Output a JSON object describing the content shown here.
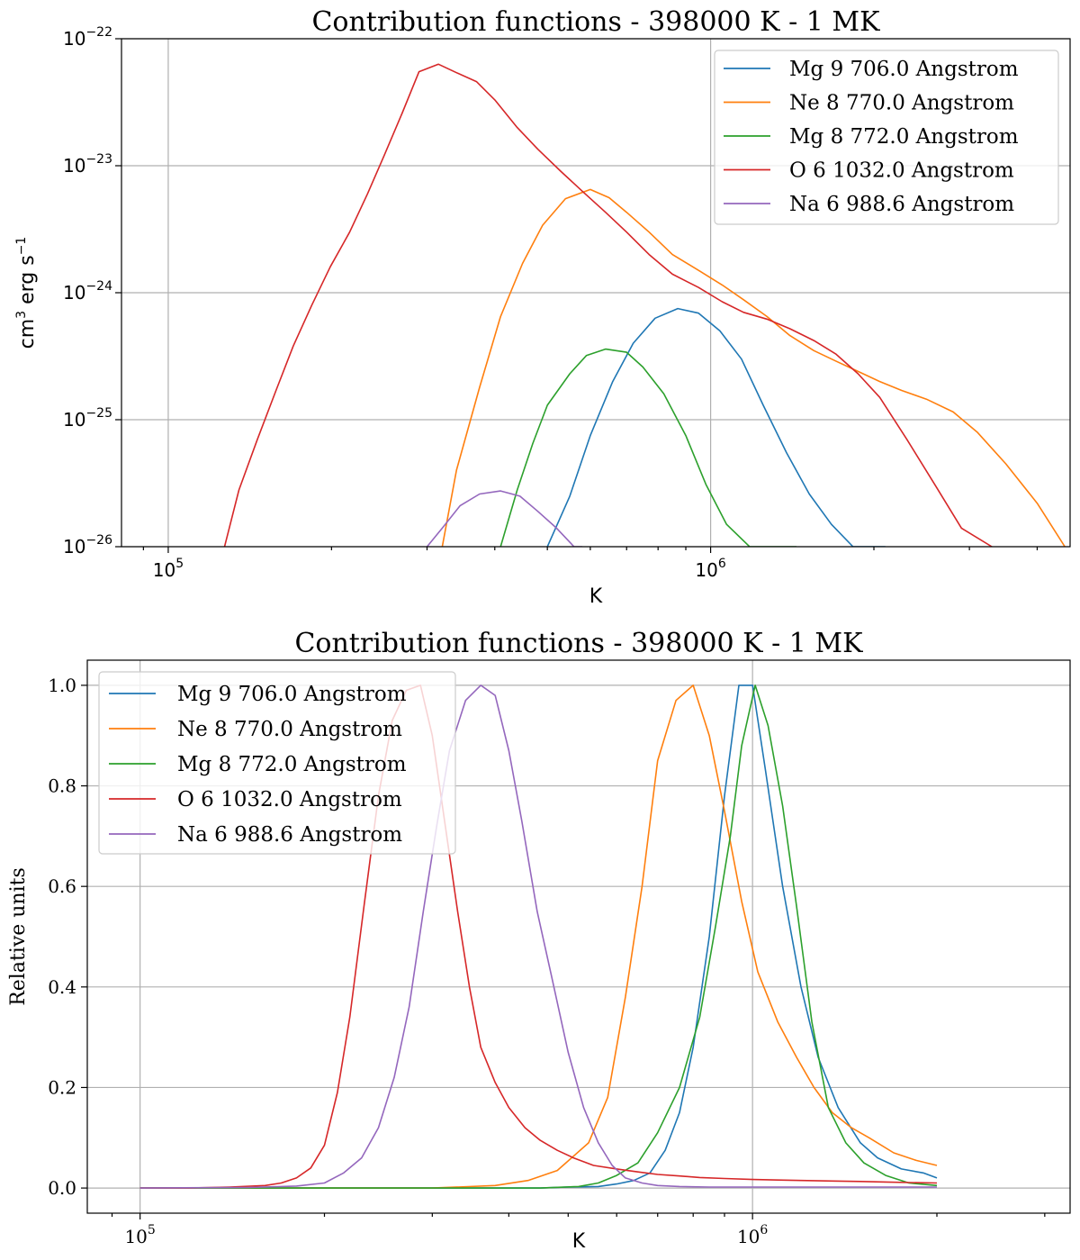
{
  "chart_data": [
    {
      "type": "line",
      "title": "Contribution functions - 398000 K - 1 MK",
      "xlabel": "K",
      "ylabel": "cm3 erg s-1",
      "xscale": "log",
      "yscale": "log",
      "xlim": [
        82000,
        4600000
      ],
      "ylim": [
        1e-26,
        1e-22
      ],
      "grid": true,
      "legend_position": "top-right",
      "x_tick_labels": [
        {
          "base": "10",
          "exp": "5",
          "value": 100000
        },
        {
          "base": "10",
          "exp": "6",
          "value": 1000000
        }
      ],
      "y_tick_labels": [
        {
          "base": "10",
          "exp": "−26",
          "value": 1e-26
        },
        {
          "base": "10",
          "exp": "−25",
          "value": 1e-25
        },
        {
          "base": "10",
          "exp": "−24",
          "value": 1e-24
        },
        {
          "base": "10",
          "exp": "−23",
          "value": 1e-23
        },
        {
          "base": "10",
          "exp": "−22",
          "value": 1e-22
        }
      ],
      "series": [
        {
          "name": "Mg 9 706.0 Angstrom",
          "color": "#1f77b4",
          "x": [
            500000,
            550000,
            600000,
            660000,
            720000,
            790000,
            870000,
            950000,
            1040000,
            1140000,
            1250000,
            1380000,
            1520000,
            1670000,
            1830000,
            2010000,
            2100000
          ],
          "y": [
            1e-26,
            2.5e-26,
            7.5e-26,
            2e-25,
            4e-25,
            6.3e-25,
            7.5e-25,
            6.9e-25,
            5e-25,
            3e-25,
            1.3e-25,
            5.5e-26,
            2.6e-26,
            1.5e-26,
            1e-26,
            1e-26,
            1e-26
          ]
        },
        {
          "name": "Ne 8 770.0 Angstrom",
          "color": "#ff7f0e",
          "x": [
            320000,
            340000,
            375000,
            410000,
            450000,
            490000,
            540000,
            600000,
            650000,
            700000,
            770000,
            850000,
            950000,
            1050000,
            1150000,
            1270000,
            1400000,
            1550000,
            1700000,
            1870000,
            2050000,
            2250000,
            2500000,
            2800000,
            3100000,
            3500000,
            4000000,
            4500000
          ],
          "y": [
            1e-26,
            4e-26,
            1.8e-25,
            6.5e-25,
            1.7e-24,
            3.4e-24,
            5.5e-24,
            6.5e-24,
            5.6e-24,
            4.3e-24,
            3e-24,
            2e-24,
            1.5e-24,
            1.15e-24,
            8.8e-25,
            6.5e-25,
            4.6e-25,
            3.5e-25,
            2.9e-25,
            2.4e-25,
            2e-25,
            1.7e-25,
            1.45e-25,
            1.15e-25,
            8e-26,
            4.5e-26,
            2.2e-26,
            1e-26
          ]
        },
        {
          "name": "Mg 8 772.0 Angstrom",
          "color": "#2ca02c",
          "x": [
            410000,
            440000,
            470000,
            500000,
            550000,
            590000,
            640000,
            700000,
            750000,
            820000,
            900000,
            980000,
            1070000,
            1180000,
            1300000,
            1400000,
            1440000
          ],
          "y": [
            1e-26,
            2.8e-26,
            6.5e-26,
            1.3e-25,
            2.3e-25,
            3.2e-25,
            3.6e-25,
            3.4e-25,
            2.6e-25,
            1.6e-25,
            7.5e-26,
            3.1e-26,
            1.5e-26,
            1e-26,
            1e-26,
            1e-26,
            1e-26
          ],
          "y_override": null
        },
        {
          "name": "O 6 1032.0 Angstrom",
          "color": "#d62728",
          "x": [
            127000,
            135000,
            146000,
            158000,
            170000,
            184000,
            199000,
            216000,
            233000,
            250000,
            270000,
            290000,
            315000,
            340000,
            370000,
            400000,
            440000,
            480000,
            530000,
            580000,
            640000,
            700000,
            770000,
            850000,
            950000,
            1050000,
            1150000,
            1270000,
            1400000,
            1550000,
            1700000,
            1870000,
            2050000,
            2300000,
            2600000,
            2900000,
            3300000
          ],
          "y": [
            1e-26,
            2.8e-26,
            7e-26,
            1.7e-25,
            3.8e-25,
            8e-25,
            1.6e-24,
            3e-24,
            6e-24,
            1.2e-23,
            2.6e-23,
            5.5e-23,
            6.3e-23,
            5.4e-23,
            4.6e-23,
            3.3e-23,
            2e-23,
            1.35e-23,
            9e-24,
            6.3e-24,
            4.3e-24,
            3e-24,
            2e-24,
            1.4e-24,
            1.1e-24,
            8.5e-25,
            7e-25,
            6.2e-25,
            5.2e-25,
            4.2e-25,
            3.3e-25,
            2.3e-25,
            1.5e-25,
            7e-26,
            3e-26,
            1.4e-26,
            1e-26
          ]
        },
        {
          "name": "Na 6 988.6 Angstrom",
          "color": "#9467bd",
          "x": [
            300000,
            320000,
            345000,
            375000,
            410000,
            445000,
            480000,
            520000,
            560000,
            580000
          ],
          "y": [
            1e-26,
            1.4e-26,
            2.1e-26,
            2.6e-26,
            2.75e-26,
            2.5e-26,
            1.9e-26,
            1.4e-26,
            1e-26,
            1e-26
          ]
        }
      ]
    },
    {
      "type": "line",
      "title": "Contribution functions - 398000 K - 1 MK",
      "xlabel": "K",
      "ylabel": "Relative units",
      "xscale": "log",
      "yscale": "linear",
      "xlim": [
        82000,
        3300000
      ],
      "ylim": [
        -0.05,
        1.05
      ],
      "grid": true,
      "legend_position": "top-left",
      "x_tick_labels": [
        {
          "base": "10",
          "exp": "5",
          "value": 100000
        },
        {
          "base": "10",
          "exp": "6",
          "value": 1000000
        }
      ],
      "y_tick_labels": [
        "0.0",
        "0.2",
        "0.4",
        "0.6",
        "0.8",
        "1.0"
      ],
      "y_tick_values": [
        0.0,
        0.2,
        0.4,
        0.6,
        0.8,
        1.0
      ],
      "series": [
        {
          "name": "Mg 9 706.0 Angstrom",
          "color": "#1f77b4",
          "x": [
            100000,
            150000,
            200000,
            300000,
            450000,
            500000,
            560000,
            600000,
            640000,
            680000,
            720000,
            760000,
            800000,
            850000,
            900000,
            950000,
            1000000,
            1050000,
            1120000,
            1200000,
            1280000,
            1380000,
            1500000,
            1600000,
            1750000,
            1900000,
            2000000
          ],
          "y": [
            0.0,
            0.0,
            0.0,
            0.0,
            0.0,
            0.002,
            0.003,
            0.008,
            0.015,
            0.03,
            0.075,
            0.15,
            0.28,
            0.5,
            0.78,
            1.0,
            1.0,
            0.83,
            0.6,
            0.4,
            0.26,
            0.16,
            0.09,
            0.06,
            0.038,
            0.03,
            0.02
          ]
        },
        {
          "name": "Ne 8 770.0 Angstrom",
          "color": "#ff7f0e",
          "x": [
            100000,
            200000,
            300000,
            380000,
            430000,
            480000,
            540000,
            580000,
            620000,
            660000,
            700000,
            750000,
            800000,
            850000,
            900000,
            960000,
            1020000,
            1100000,
            1180000,
            1260000,
            1350000,
            1450000,
            1550000,
            1700000,
            1850000,
            2000000
          ],
          "y": [
            0.0,
            0.0,
            0.0,
            0.005,
            0.015,
            0.035,
            0.09,
            0.18,
            0.38,
            0.6,
            0.85,
            0.97,
            1.0,
            0.9,
            0.75,
            0.57,
            0.43,
            0.33,
            0.26,
            0.2,
            0.15,
            0.12,
            0.1,
            0.07,
            0.055,
            0.045
          ]
        },
        {
          "name": "Mg 8 772.0 Angstrom",
          "color": "#2ca02c",
          "x": [
            100000,
            300000,
            450000,
            520000,
            560000,
            600000,
            650000,
            700000,
            760000,
            820000,
            870000,
            920000,
            960000,
            1010000,
            1060000,
            1120000,
            1180000,
            1250000,
            1330000,
            1420000,
            1520000,
            1650000,
            1800000,
            2000000
          ],
          "y": [
            0.0,
            0.0,
            0.0,
            0.003,
            0.01,
            0.025,
            0.05,
            0.11,
            0.2,
            0.34,
            0.52,
            0.7,
            0.88,
            1.0,
            0.92,
            0.76,
            0.56,
            0.33,
            0.16,
            0.09,
            0.05,
            0.025,
            0.01,
            0.005
          ]
        },
        {
          "name": "O 6 1032.0 Angstrom",
          "color": "#d62728",
          "x": [
            100000,
            120000,
            140000,
            160000,
            170000,
            180000,
            190000,
            200000,
            210000,
            220000,
            232000,
            245000,
            258000,
            272000,
            287000,
            300000,
            315000,
            330000,
            345000,
            360000,
            380000,
            400000,
            425000,
            450000,
            480000,
            510000,
            550000,
            600000,
            650000,
            700000,
            760000,
            820000,
            900000,
            1000000,
            1100000,
            1200000,
            1350000,
            1500000,
            1650000,
            1800000,
            2000000
          ],
          "y": [
            0.0,
            0.0,
            0.002,
            0.005,
            0.01,
            0.02,
            0.04,
            0.085,
            0.19,
            0.34,
            0.56,
            0.78,
            0.93,
            0.99,
            1.0,
            0.9,
            0.72,
            0.55,
            0.4,
            0.28,
            0.21,
            0.16,
            0.12,
            0.095,
            0.075,
            0.06,
            0.045,
            0.038,
            0.032,
            0.027,
            0.024,
            0.021,
            0.019,
            0.017,
            0.016,
            0.015,
            0.014,
            0.013,
            0.012,
            0.011,
            0.01
          ]
        },
        {
          "name": "Na 6 988.6 Angstrom",
          "color": "#9467bd",
          "x": [
            100000,
            150000,
            180000,
            200000,
            215000,
            230000,
            245000,
            260000,
            275000,
            290000,
            305000,
            320000,
            340000,
            360000,
            380000,
            400000,
            420000,
            445000,
            470000,
            500000,
            530000,
            560000,
            590000,
            620000,
            660000,
            700000,
            760000,
            850000,
            1000000,
            1200000,
            1500000,
            2000000
          ],
          "y": [
            0.0,
            0.001,
            0.004,
            0.01,
            0.03,
            0.06,
            0.12,
            0.22,
            0.36,
            0.55,
            0.72,
            0.87,
            0.97,
            1.0,
            0.98,
            0.87,
            0.73,
            0.55,
            0.42,
            0.27,
            0.16,
            0.09,
            0.045,
            0.02,
            0.01,
            0.005,
            0.003,
            0.002,
            0.002,
            0.002,
            0.002,
            0.002
          ]
        }
      ]
    }
  ]
}
